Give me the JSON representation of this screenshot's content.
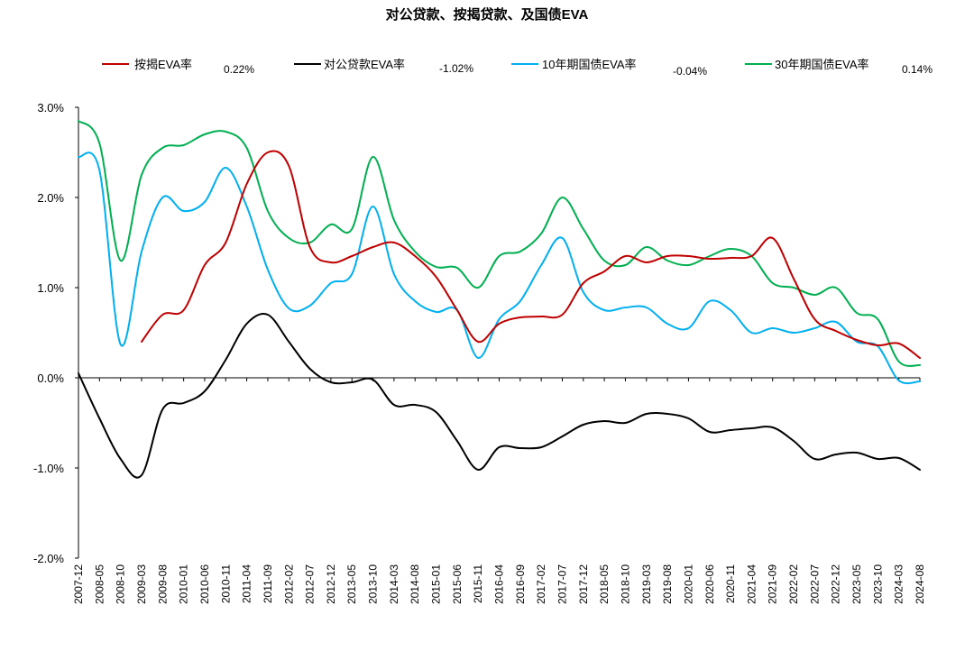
{
  "chart_data": {
    "type": "line",
    "title": "对公贷款、按揭贷款、及国债EVA",
    "xlabel": "",
    "ylabel": "",
    "ylim": [
      -0.02,
      0.03
    ],
    "y_ticks": [
      "3.0%",
      "2.0%",
      "1.0%",
      "0.0%",
      "-1.0%",
      "-2.0%"
    ],
    "y_tick_values": [
      0.03,
      0.02,
      0.01,
      0.0,
      -0.01,
      -0.02
    ],
    "x_tick_labels": [
      "2007-12",
      "2008-05",
      "2008-10",
      "2009-03",
      "2009-08",
      "2010-01",
      "2010-06",
      "2010-11",
      "2011-04",
      "2011-09",
      "2012-02",
      "2012-07",
      "2012-12",
      "2013-05",
      "2013-10",
      "2014-03",
      "2014-08",
      "2015-01",
      "2015-06",
      "2015-11",
      "2016-04",
      "2016-09",
      "2017-02",
      "2017-07",
      "2017-12",
      "2018-05",
      "2018-10",
      "2019-03",
      "2019-08",
      "2020-01",
      "2020-06",
      "2020-11",
      "2021-04",
      "2021-09",
      "2022-02",
      "2022-07",
      "2022-12",
      "2023-05",
      "2023-10",
      "2024-03",
      "2024-08"
    ],
    "legend_position": "top",
    "grid": false,
    "series": [
      {
        "name": "按揭EVA率",
        "latest_value": "0.22%",
        "color": "#c00000",
        "points": [
          [
            "2009-03",
            0.004
          ],
          [
            "2009-08",
            0.007
          ],
          [
            "2010-01",
            0.0075
          ],
          [
            "2010-06",
            0.0125
          ],
          [
            "2010-11",
            0.015
          ],
          [
            "2011-04",
            0.0215
          ],
          [
            "2011-09",
            0.025
          ],
          [
            "2012-02",
            0.0235
          ],
          [
            "2012-07",
            0.0145
          ],
          [
            "2012-12",
            0.0128
          ],
          [
            "2013-05",
            0.0135
          ],
          [
            "2013-10",
            0.0145
          ],
          [
            "2014-03",
            0.015
          ],
          [
            "2014-08",
            0.0135
          ],
          [
            "2015-01",
            0.0112
          ],
          [
            "2015-06",
            0.0075
          ],
          [
            "2015-11",
            0.004
          ],
          [
            "2016-04",
            0.006
          ],
          [
            "2016-09",
            0.0067
          ],
          [
            "2017-02",
            0.0068
          ],
          [
            "2017-07",
            0.007
          ],
          [
            "2017-12",
            0.0105
          ],
          [
            "2018-05",
            0.0118
          ],
          [
            "2018-10",
            0.0135
          ],
          [
            "2019-03",
            0.0128
          ],
          [
            "2019-08",
            0.0135
          ],
          [
            "2020-01",
            0.0135
          ],
          [
            "2020-06",
            0.0132
          ],
          [
            "2020-11",
            0.0133
          ],
          [
            "2021-04",
            0.0135
          ],
          [
            "2021-09",
            0.0155
          ],
          [
            "2022-02",
            0.011
          ],
          [
            "2022-07",
            0.0065
          ],
          [
            "2022-12",
            0.0052
          ],
          [
            "2023-05",
            0.0042
          ],
          [
            "2023-10",
            0.0036
          ],
          [
            "2024-03",
            0.0038
          ],
          [
            "2024-08",
            0.0022
          ]
        ]
      },
      {
        "name": "对公贷款EVA率",
        "latest_value": "-1.02%",
        "color": "#000000",
        "points": [
          [
            "2007-12",
            0.0005
          ],
          [
            "2008-05",
            -0.0045
          ],
          [
            "2008-10",
            -0.009
          ],
          [
            "2009-03",
            -0.0108
          ],
          [
            "2009-08",
            -0.0035
          ],
          [
            "2010-01",
            -0.0028
          ],
          [
            "2010-06",
            -0.0015
          ],
          [
            "2010-11",
            0.002
          ],
          [
            "2011-04",
            0.006
          ],
          [
            "2011-09",
            0.007
          ],
          [
            "2012-02",
            0.004
          ],
          [
            "2012-07",
            0.001
          ],
          [
            "2012-12",
            -0.0005
          ],
          [
            "2013-05",
            -0.0005
          ],
          [
            "2013-10",
            -0.0002
          ],
          [
            "2014-03",
            -0.003
          ],
          [
            "2014-08",
            -0.003
          ],
          [
            "2015-01",
            -0.0038
          ],
          [
            "2015-06",
            -0.007
          ],
          [
            "2015-11",
            -0.0102
          ],
          [
            "2016-04",
            -0.0077
          ],
          [
            "2016-09",
            -0.0078
          ],
          [
            "2017-02",
            -0.0077
          ],
          [
            "2017-07",
            -0.0065
          ],
          [
            "2017-12",
            -0.0052
          ],
          [
            "2018-05",
            -0.0048
          ],
          [
            "2018-10",
            -0.005
          ],
          [
            "2019-03",
            -0.004
          ],
          [
            "2019-08",
            -0.004
          ],
          [
            "2020-01",
            -0.0045
          ],
          [
            "2020-06",
            -0.006
          ],
          [
            "2020-11",
            -0.0058
          ],
          [
            "2021-04",
            -0.0056
          ],
          [
            "2021-09",
            -0.0055
          ],
          [
            "2022-02",
            -0.007
          ],
          [
            "2022-07",
            -0.009
          ],
          [
            "2022-12",
            -0.0085
          ],
          [
            "2023-05",
            -0.0083
          ],
          [
            "2023-10",
            -0.009
          ],
          [
            "2024-03",
            -0.0089
          ],
          [
            "2024-08",
            -0.0102
          ]
        ]
      },
      {
        "name": "10年期国债EVA率",
        "latest_value": "-0.04%",
        "color": "#00b0f0",
        "points": [
          [
            "2007-12",
            0.0245
          ],
          [
            "2008-05",
            0.023
          ],
          [
            "2008-10",
            0.0037
          ],
          [
            "2009-03",
            0.014
          ],
          [
            "2009-08",
            0.02
          ],
          [
            "2010-01",
            0.0185
          ],
          [
            "2010-06",
            0.0195
          ],
          [
            "2010-11",
            0.0233
          ],
          [
            "2011-04",
            0.019
          ],
          [
            "2011-09",
            0.012
          ],
          [
            "2012-02",
            0.0077
          ],
          [
            "2012-07",
            0.008
          ],
          [
            "2012-12",
            0.0105
          ],
          [
            "2013-05",
            0.0115
          ],
          [
            "2013-10",
            0.019
          ],
          [
            "2014-03",
            0.0115
          ],
          [
            "2014-08",
            0.0085
          ],
          [
            "2015-01",
            0.0073
          ],
          [
            "2015-06",
            0.0075
          ],
          [
            "2015-11",
            0.0022
          ],
          [
            "2016-04",
            0.0065
          ],
          [
            "2016-09",
            0.0085
          ],
          [
            "2017-02",
            0.0125
          ],
          [
            "2017-07",
            0.0155
          ],
          [
            "2017-12",
            0.0095
          ],
          [
            "2018-05",
            0.0075
          ],
          [
            "2018-10",
            0.0078
          ],
          [
            "2019-03",
            0.0078
          ],
          [
            "2019-08",
            0.006
          ],
          [
            "2020-01",
            0.0055
          ],
          [
            "2020-06",
            0.0085
          ],
          [
            "2020-11",
            0.0075
          ],
          [
            "2021-04",
            0.005
          ],
          [
            "2021-09",
            0.0055
          ],
          [
            "2022-02",
            0.005
          ],
          [
            "2022-07",
            0.0055
          ],
          [
            "2022-12",
            0.0062
          ],
          [
            "2023-05",
            0.004
          ],
          [
            "2023-10",
            0.0035
          ],
          [
            "2024-03",
            -0.0003
          ],
          [
            "2024-08",
            -0.0004
          ]
        ]
      },
      {
        "name": "30年期国债EVA率",
        "latest_value": "0.14%",
        "color": "#00b050",
        "points": [
          [
            "2007-12",
            0.0285
          ],
          [
            "2008-05",
            0.026
          ],
          [
            "2008-10",
            0.013
          ],
          [
            "2009-03",
            0.0225
          ],
          [
            "2009-08",
            0.0255
          ],
          [
            "2010-01",
            0.0258
          ],
          [
            "2010-06",
            0.027
          ],
          [
            "2010-11",
            0.0273
          ],
          [
            "2011-04",
            0.0255
          ],
          [
            "2011-09",
            0.0185
          ],
          [
            "2012-02",
            0.0155
          ],
          [
            "2012-07",
            0.015
          ],
          [
            "2012-12",
            0.017
          ],
          [
            "2013-05",
            0.0165
          ],
          [
            "2013-10",
            0.0245
          ],
          [
            "2014-03",
            0.0175
          ],
          [
            "2014-08",
            0.014
          ],
          [
            "2015-01",
            0.0123
          ],
          [
            "2015-06",
            0.0122
          ],
          [
            "2015-11",
            0.01
          ],
          [
            "2016-04",
            0.0135
          ],
          [
            "2016-09",
            0.014
          ],
          [
            "2017-02",
            0.016
          ],
          [
            "2017-07",
            0.02
          ],
          [
            "2017-12",
            0.0165
          ],
          [
            "2018-05",
            0.013
          ],
          [
            "2018-10",
            0.0125
          ],
          [
            "2019-03",
            0.0145
          ],
          [
            "2019-08",
            0.013
          ],
          [
            "2020-01",
            0.0125
          ],
          [
            "2020-06",
            0.0135
          ],
          [
            "2020-11",
            0.0143
          ],
          [
            "2021-04",
            0.0135
          ],
          [
            "2021-09",
            0.0105
          ],
          [
            "2022-02",
            0.01
          ],
          [
            "2022-07",
            0.0092
          ],
          [
            "2022-12",
            0.01
          ],
          [
            "2023-05",
            0.0072
          ],
          [
            "2023-10",
            0.0065
          ],
          [
            "2024-03",
            0.0018
          ],
          [
            "2024-08",
            0.0014
          ]
        ]
      }
    ]
  }
}
